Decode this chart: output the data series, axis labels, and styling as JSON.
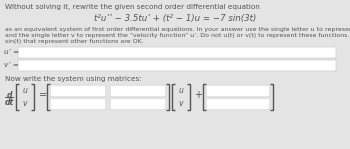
{
  "bg_color": "#e4e4e4",
  "text_color": "#555555",
  "box_color": "#ffffff",
  "box_edge_color": "#cccccc",
  "title_text": "Without solving it, rewrite the given second order differential equation",
  "equation": "t²u’’ − 3.5tu’ + (t² − 1)u = −7 sin(3t)",
  "body_line1": "as an equivalent system of first order differential equations. In your answer use the single letter u to represent the function u",
  "body_line2": "and the single letter v to represent the “velocity function” u’. Do not u(t) or v(t) to represent these functions. Expressions like",
  "body_line3": "sin(t) that represent other functions are OK.",
  "matrix_label": "Now write the system using matrices:",
  "font_size_title": 5.2,
  "font_size_eq": 6.2,
  "font_size_body": 4.5,
  "font_size_labels": 5.2,
  "font_size_matrix": 5.2,
  "font_size_bracket": 6.0
}
